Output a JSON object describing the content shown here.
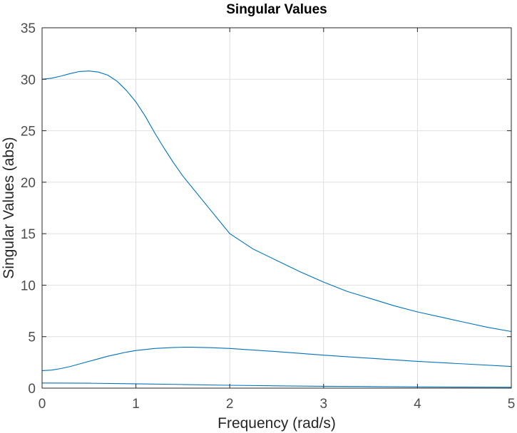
{
  "chart_data": {
    "type": "line",
    "title": "Singular Values",
    "xlabel": "Frequency (rad/s)",
    "ylabel": "Singular Values (abs)",
    "xlim": [
      0,
      5
    ],
    "ylim": [
      0,
      35
    ],
    "xticks": [
      0,
      1,
      2,
      3,
      4,
      5
    ],
    "yticks": [
      0,
      5,
      10,
      15,
      20,
      25,
      30,
      35
    ],
    "grid": true,
    "legend": "none",
    "line_color": "#0072BD",
    "series": [
      {
        "x": [
          0,
          0.1,
          0.2,
          0.3,
          0.4,
          0.5,
          0.6,
          0.7,
          0.8,
          0.9,
          1.0,
          1.1,
          1.2,
          1.3,
          1.4,
          1.5,
          1.75,
          2.0,
          2.25,
          2.5,
          2.75,
          3.0,
          3.25,
          3.5,
          3.75,
          4.0,
          4.25,
          4.5,
          4.75,
          5.0
        ],
        "y": [
          30.0,
          30.1,
          30.3,
          30.55,
          30.75,
          30.8,
          30.7,
          30.4,
          29.8,
          28.9,
          27.8,
          26.4,
          24.8,
          23.3,
          21.9,
          20.6,
          17.8,
          15.0,
          13.5,
          12.4,
          11.3,
          10.3,
          9.4,
          8.7,
          8.0,
          7.4,
          6.9,
          6.4,
          5.9,
          5.5
        ]
      },
      {
        "x": [
          0,
          0.1,
          0.2,
          0.3,
          0.4,
          0.5,
          0.6,
          0.7,
          0.8,
          0.9,
          1.0,
          1.2,
          1.4,
          1.5,
          1.6,
          1.8,
          2.0,
          2.5,
          3.0,
          3.5,
          4.0,
          4.5,
          5.0
        ],
        "y": [
          1.7,
          1.75,
          1.9,
          2.1,
          2.35,
          2.6,
          2.85,
          3.1,
          3.3,
          3.5,
          3.65,
          3.85,
          3.95,
          3.97,
          3.97,
          3.93,
          3.85,
          3.55,
          3.2,
          2.9,
          2.6,
          2.35,
          2.1
        ]
      },
      {
        "x": [
          0,
          0.5,
          1.0,
          1.5,
          2.0,
          2.5,
          3.0,
          3.5,
          4.0,
          4.5,
          5.0
        ],
        "y": [
          0.5,
          0.48,
          0.42,
          0.35,
          0.28,
          0.22,
          0.18,
          0.15,
          0.12,
          0.1,
          0.08
        ]
      }
    ]
  }
}
